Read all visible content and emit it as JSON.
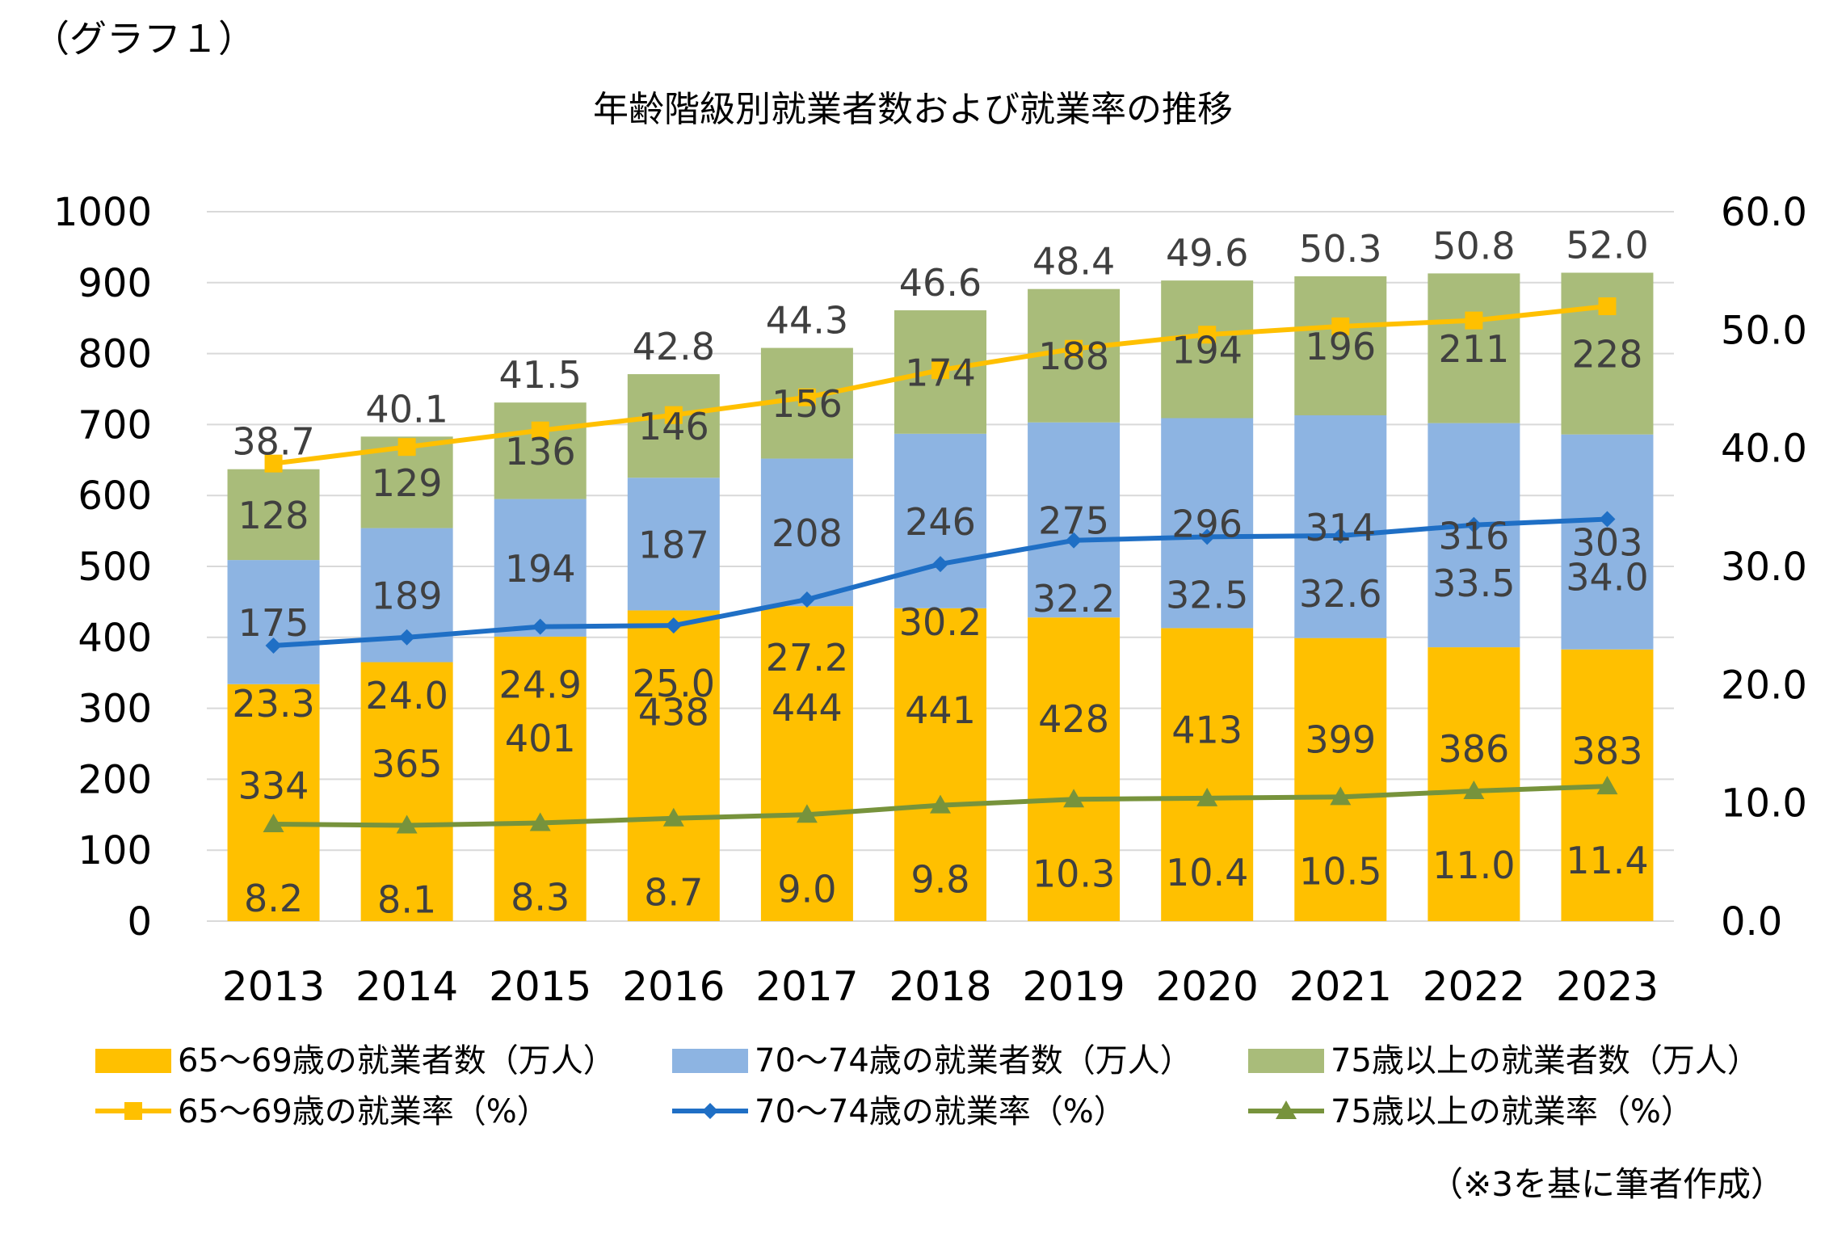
{
  "header": {
    "label": "（グラフ１）"
  },
  "source_note": "（※3を基に筆者作成）",
  "colors": {
    "c65": "#FFC000",
    "c70": "#8DB4E2",
    "c75": "#A9BC7A",
    "l65": "#FFC000",
    "l70": "#1F6FC5",
    "l75": "#77933C",
    "grid": "#D9D9D9",
    "label": "#404040"
  },
  "chart_data": {
    "type": "bar",
    "title": "年齢階級別就業者数および就業率の推移",
    "categories": [
      "2013",
      "2014",
      "2015",
      "2016",
      "2017",
      "2018",
      "2019",
      "2020",
      "2021",
      "2022",
      "2023"
    ],
    "y_left": {
      "min": 0,
      "max": 1000,
      "ticks": [
        "0",
        "100",
        "200",
        "300",
        "400",
        "500",
        "600",
        "700",
        "800",
        "900",
        "1000"
      ]
    },
    "y_right": {
      "min": 0,
      "max": 60,
      "ticks": [
        "0.0",
        "10.0",
        "20.0",
        "30.0",
        "40.0",
        "50.0",
        "60.0"
      ]
    },
    "bar_series": [
      {
        "name": "65〜69歳の就業者数（万人）",
        "values": [
          334,
          365,
          401,
          438,
          444,
          441,
          428,
          413,
          399,
          386,
          383
        ]
      },
      {
        "name": "70〜74歳の就業者数（万人）",
        "values": [
          175,
          189,
          194,
          187,
          208,
          246,
          275,
          296,
          314,
          316,
          303
        ]
      },
      {
        "name": "75歳以上の就業者数（万人）",
        "values": [
          128,
          129,
          136,
          146,
          156,
          174,
          188,
          194,
          196,
          211,
          228
        ]
      }
    ],
    "line_series": [
      {
        "name": "65〜69歳の就業率（%）",
        "marker": "square",
        "values": [
          38.7,
          40.1,
          41.5,
          42.8,
          44.3,
          46.6,
          48.4,
          49.6,
          50.3,
          50.8,
          52.0
        ]
      },
      {
        "name": "70〜74歳の就業率（%）",
        "marker": "diamond",
        "values": [
          23.3,
          24.0,
          24.9,
          25.0,
          27.2,
          30.2,
          32.2,
          32.5,
          32.6,
          33.5,
          34.0
        ]
      },
      {
        "name": "75歳以上の就業率（%）",
        "marker": "triangle",
        "values": [
          8.2,
          8.1,
          8.3,
          8.7,
          9.0,
          9.8,
          10.3,
          10.4,
          10.5,
          11.0,
          11.4
        ]
      }
    ],
    "grid": true,
    "legend_position": "bottom"
  }
}
